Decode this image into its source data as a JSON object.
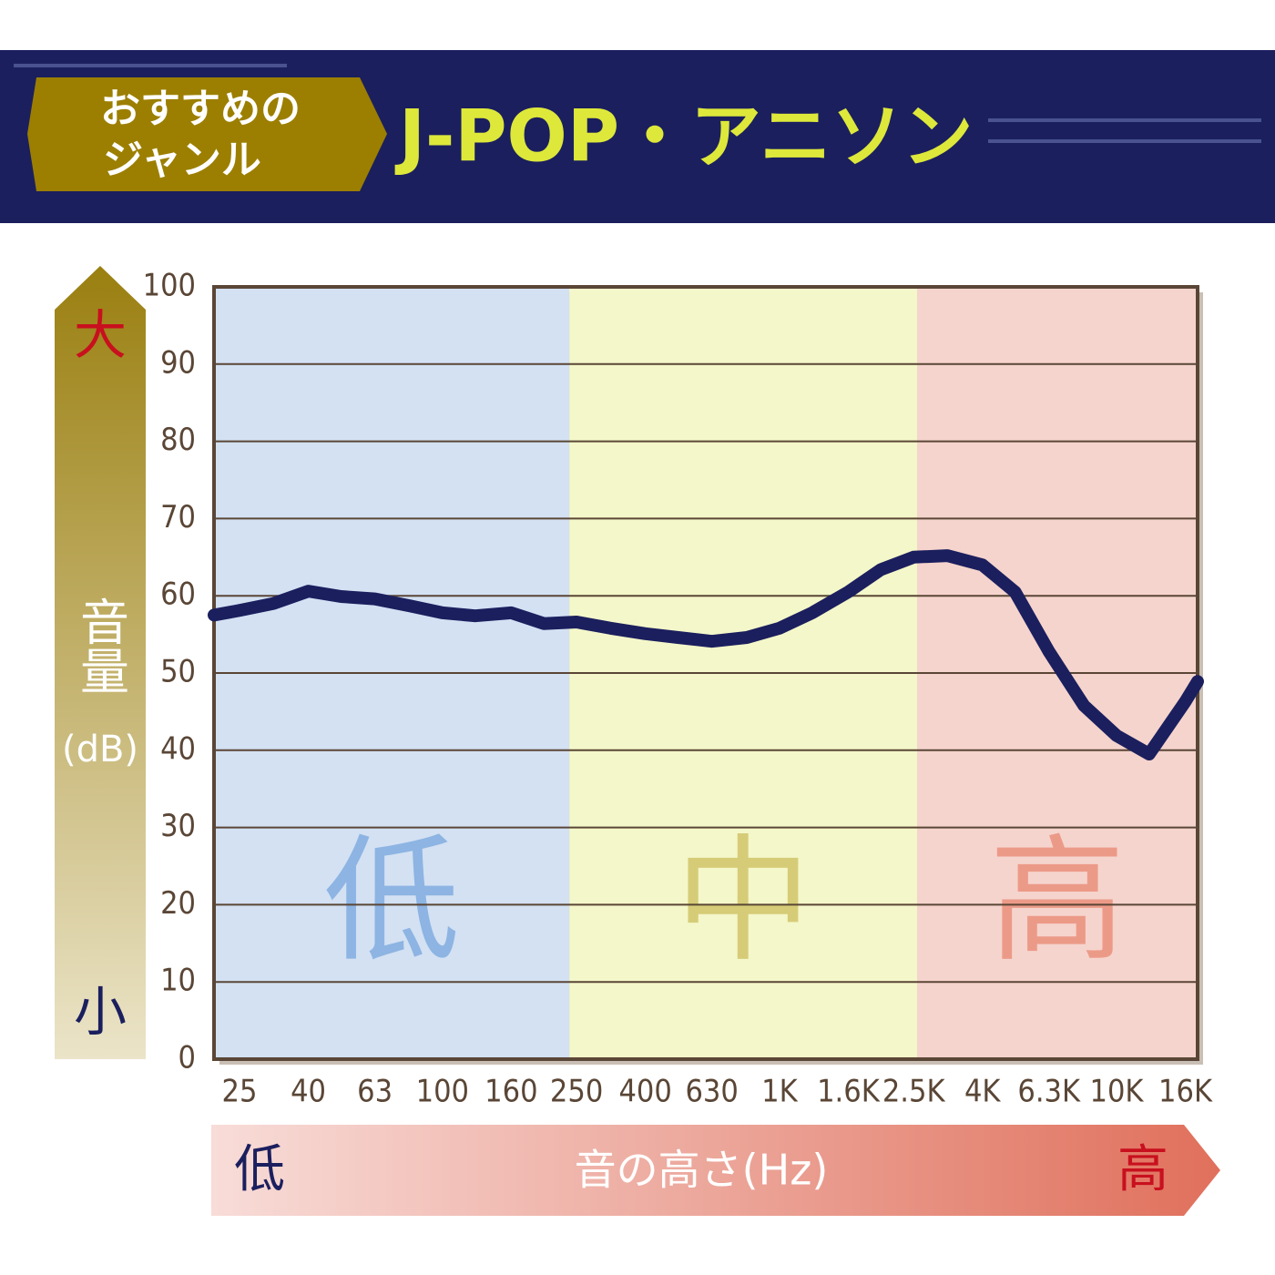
{
  "header": {
    "badge": [
      "おすすめの",
      "ジャンル"
    ],
    "title": "J-POP・アニソン"
  },
  "chart_data": {
    "type": "line",
    "xscale": "log",
    "color": "#1b1f5e",
    "grid": true,
    "ylabel": "音量",
    "yunit": "(dB)",
    "y_top": "大",
    "y_bottom": "小",
    "xlabel": "音の高さ(Hz)",
    "x_low": "低",
    "x_high": "高",
    "bands": [
      {
        "label": "低",
        "from": 21,
        "to": 238,
        "color": "#d3e1f3",
        "text_color": "#8db4e2"
      },
      {
        "label": "中",
        "from": 238,
        "to": 2560,
        "color": "#f4f7c9",
        "text_color": "#d6cc78"
      },
      {
        "label": "高",
        "from": 2560,
        "to": 17400,
        "color": "#f5d4cd",
        "text_color": "#ec9a88"
      }
    ],
    "x": [
      21,
      25,
      31.5,
      40,
      50,
      63,
      80,
      100,
      125,
      160,
      200,
      250,
      315,
      400,
      500,
      630,
      800,
      1000,
      1250,
      1600,
      2000,
      2500,
      3150,
      4000,
      5000,
      6300,
      8000,
      10000,
      12500,
      16000,
      17400
    ],
    "values": [
      57.5,
      58.1,
      59.0,
      60.6,
      59.9,
      59.6,
      58.7,
      57.8,
      57.4,
      57.8,
      56.4,
      56.6,
      55.8,
      55.1,
      54.6,
      54.1,
      54.6,
      55.8,
      57.8,
      60.5,
      63.4,
      65.0,
      65.2,
      64.0,
      60.5,
      52.8,
      45.8,
      41.9,
      39.5,
      46.3,
      48.9
    ],
    "xlim": [
      21,
      17400
    ],
    "ylim": [
      0,
      100
    ],
    "xticks": [
      25,
      40,
      63,
      100,
      160,
      250,
      400,
      630,
      {
        "value": 1000,
        "label": "1K"
      },
      {
        "value": 1600,
        "label": "1.6K"
      },
      {
        "value": 2500,
        "label": "2.5K"
      },
      {
        "value": 4000,
        "label": "4K"
      },
      {
        "value": 6300,
        "label": "6.3K"
      },
      {
        "value": 10000,
        "label": "10K"
      },
      {
        "value": 16000,
        "label": "16K"
      }
    ],
    "yticks": [
      0,
      10,
      20,
      30,
      40,
      50,
      60,
      70,
      80,
      90,
      100
    ]
  }
}
